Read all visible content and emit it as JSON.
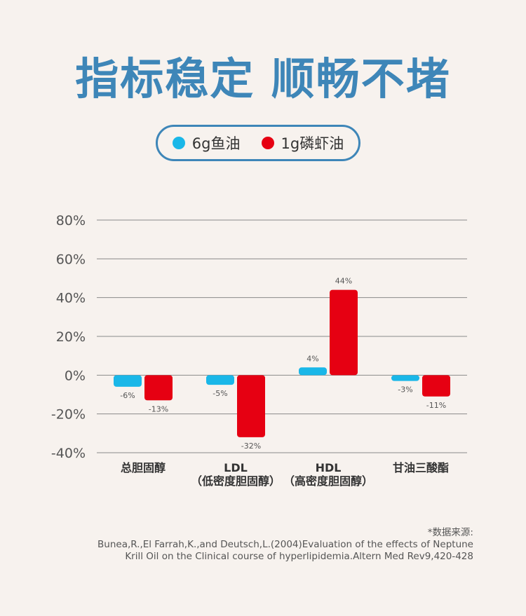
{
  "title": "指标稳定 顺畅不堵",
  "legend": [
    {
      "label": "6g鱼油",
      "color": "#1ab7e8"
    },
    {
      "label": "1g磷虾油",
      "color": "#e60012"
    }
  ],
  "chart_data": {
    "type": "bar",
    "categories": [
      {
        "line1": "总胆固醇",
        "line2": ""
      },
      {
        "line1": "LDL",
        "line2": "（低密度胆固醇）"
      },
      {
        "line1": "HDL",
        "line2": "（高密度胆固醇）"
      },
      {
        "line1": "甘油三酸酯",
        "line2": ""
      }
    ],
    "series": [
      {
        "name": "6g鱼油",
        "color": "#1ab7e8",
        "values": [
          -6,
          -5,
          4,
          -3
        ],
        "labels": [
          "-6%",
          "-5%",
          "4%",
          "-3%"
        ]
      },
      {
        "name": "1g磷虾油",
        "color": "#e60012",
        "values": [
          -13,
          -32,
          44,
          -11
        ],
        "labels": [
          "-13%",
          "-32%",
          "44%",
          "-11%"
        ]
      }
    ],
    "ylim": [
      -40,
      80
    ],
    "yticks": [
      80,
      60,
      40,
      20,
      0,
      -20,
      -40
    ],
    "ytick_labels": [
      "80%",
      "60%",
      "40%",
      "20%",
      "0%",
      "-20%",
      "-40%"
    ],
    "grid": true
  },
  "source": {
    "heading": "*数据来源:",
    "line1": "Bunea,R.,El Farrah,K.,and Deutsch,L.(2004)Evaluation of the effects of Neptune",
    "line2": "Krill Oil on the Clinical course of hyperlipidemia.Altern Med Rev9,420-428"
  }
}
